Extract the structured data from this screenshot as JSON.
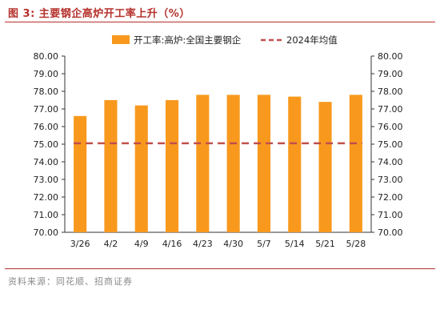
{
  "header": {
    "title": "图 3:  主要钢企高炉开工率上升（%）"
  },
  "footer": {
    "source": "资料来源：同花顺、招商证券"
  },
  "colors": {
    "bar": "#f8991d",
    "avg_line": "#c0504d",
    "title": "#b5312a"
  },
  "chart_data": {
    "type": "bar",
    "categories": [
      "3/26",
      "4/2",
      "4/9",
      "4/16",
      "4/23",
      "4/30",
      "5/7",
      "5/14",
      "5/21",
      "5/28"
    ],
    "series": [
      {
        "name": "开工率:高炉:全国主要钢企",
        "values": [
          76.6,
          77.5,
          77.2,
          77.5,
          77.8,
          77.8,
          77.8,
          77.7,
          77.4,
          77.8
        ]
      }
    ],
    "avg_line": {
      "name": "2024年均值",
      "value": 75.05
    },
    "ylim": [
      70,
      80
    ],
    "yticks": [
      "70.00",
      "71.00",
      "72.00",
      "73.00",
      "74.00",
      "75.00",
      "76.00",
      "77.00",
      "78.00",
      "79.00",
      "80.00"
    ],
    "ylim_right": [
      70,
      80
    ],
    "yticks_right": [
      "70.00",
      "71.00",
      "72.00",
      "73.00",
      "74.00",
      "75.00",
      "76.00",
      "77.00",
      "78.00",
      "79.00",
      "80.00"
    ],
    "legend": "top",
    "grid": false
  }
}
